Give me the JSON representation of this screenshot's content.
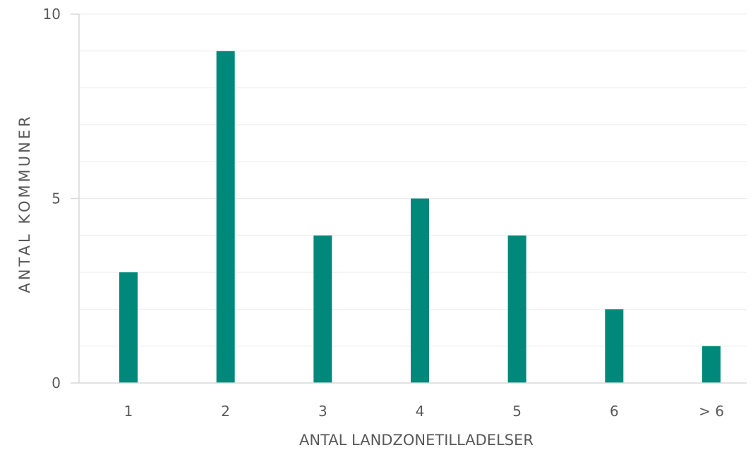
{
  "chart_data": {
    "type": "bar",
    "title": "",
    "xlabel": "ANTAL LANDZONETILLADELSER",
    "ylabel": "ANTAL KOMMUNER",
    "categories": [
      "1",
      "2",
      "3",
      "4",
      "5",
      "6",
      "> 6"
    ],
    "values": [
      3,
      9,
      4,
      5,
      4,
      2,
      1
    ],
    "ylim": [
      0,
      10
    ],
    "y_ticks": [
      "0",
      "5",
      "10"
    ],
    "grid": true,
    "bar_color": "#00897b"
  }
}
